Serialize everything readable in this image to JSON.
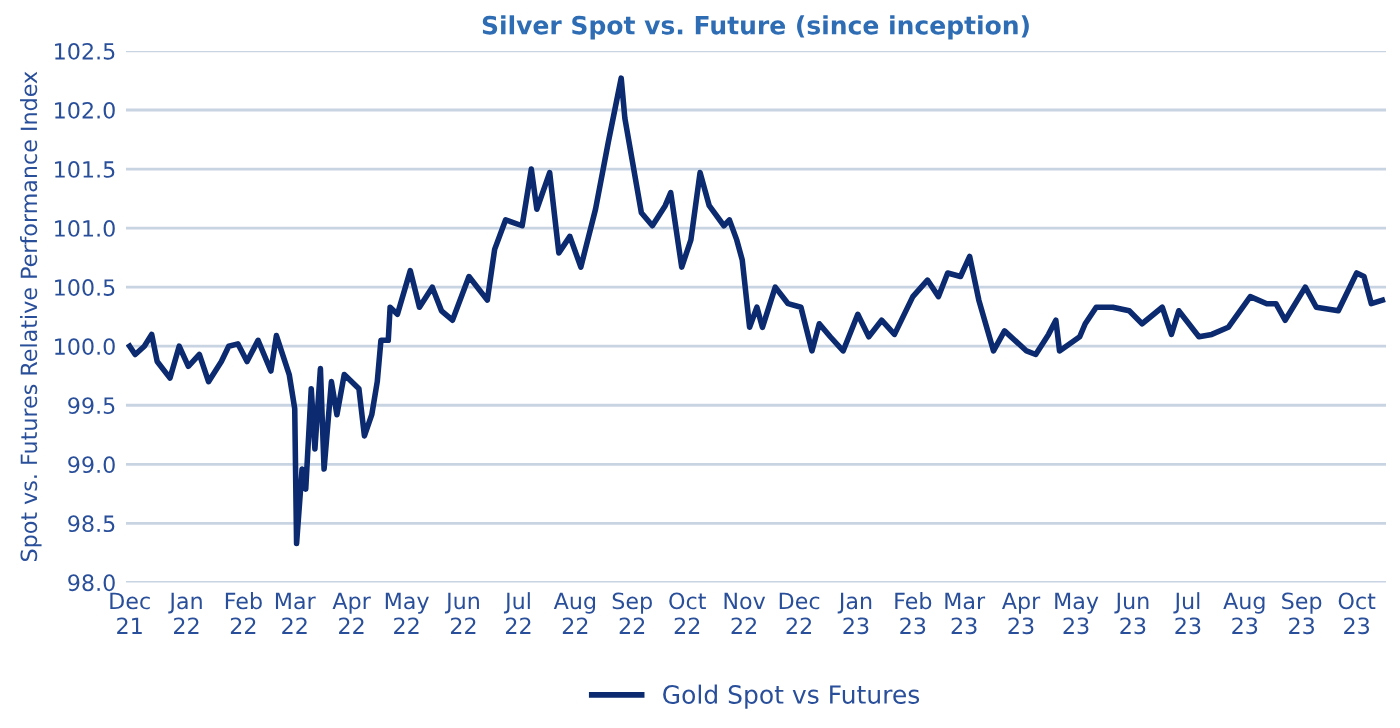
{
  "chart_data": {
    "type": "line",
    "title": "Silver Spot vs. Future (since inception)",
    "ylabel": "Spot vs. Futures Relative Performance Index",
    "x": [
      "2021-12-01",
      "2021-12-04",
      "2021-12-09",
      "2021-12-13",
      "2021-12-16",
      "2021-12-23",
      "2021-12-28",
      "2022-01-02",
      "2022-01-08",
      "2022-01-13",
      "2022-01-20",
      "2022-01-24",
      "2022-01-29",
      "2022-02-03",
      "2022-02-09",
      "2022-02-16",
      "2022-02-19",
      "2022-02-26",
      "2022-03-01",
      "2022-03-02",
      "2022-03-05",
      "2022-03-07",
      "2022-03-10",
      "2022-03-12",
      "2022-03-15",
      "2022-03-17",
      "2022-03-21",
      "2022-03-24",
      "2022-03-28",
      "2022-04-05",
      "2022-04-08",
      "2022-04-12",
      "2022-04-15",
      "2022-04-17",
      "2022-04-21",
      "2022-04-22",
      "2022-04-26",
      "2022-05-03",
      "2022-05-08",
      "2022-05-15",
      "2022-05-20",
      "2022-05-26",
      "2022-06-04",
      "2022-06-14",
      "2022-06-18",
      "2022-06-24",
      "2022-07-03",
      "2022-07-08",
      "2022-07-11",
      "2022-07-18",
      "2022-07-23",
      "2022-07-29",
      "2022-08-04",
      "2022-08-12",
      "2022-08-19",
      "2022-08-26",
      "2022-08-28",
      "2022-09-06",
      "2022-09-12",
      "2022-09-19",
      "2022-09-22",
      "2022-09-28",
      "2022-10-03",
      "2022-10-08",
      "2022-10-13",
      "2022-10-21",
      "2022-10-24",
      "2022-10-28",
      "2022-10-31",
      "2022-11-04",
      "2022-11-08",
      "2022-11-11",
      "2022-11-18",
      "2022-11-25",
      "2022-12-02",
      "2022-12-08",
      "2022-12-12",
      "2022-12-18",
      "2022-12-25",
      "2023-01-02",
      "2023-01-08",
      "2023-01-15",
      "2023-01-22",
      "2023-02-01",
      "2023-02-09",
      "2023-02-15",
      "2023-02-20",
      "2023-02-27",
      "2023-03-04",
      "2023-03-09",
      "2023-03-17",
      "2023-03-23",
      "2023-04-04",
      "2023-04-09",
      "2023-04-16",
      "2023-04-20",
      "2023-04-22",
      "2023-05-03",
      "2023-05-06",
      "2023-05-12",
      "2023-05-21",
      "2023-05-30",
      "2023-06-06",
      "2023-06-17",
      "2023-06-22",
      "2023-06-26",
      "2023-07-07",
      "2023-07-14",
      "2023-07-23",
      "2023-08-04",
      "2023-08-13",
      "2023-08-18",
      "2023-08-23",
      "2023-09-03",
      "2023-09-09",
      "2023-09-21",
      "2023-10-01",
      "2023-10-05",
      "2023-10-09",
      "2023-10-15"
    ],
    "series": [
      {
        "name": "Gold Spot vs Futures",
        "color": "#0b2a6f",
        "values": [
          100.0,
          99.93,
          100.0,
          100.1,
          99.87,
          99.73,
          100.0,
          99.83,
          99.93,
          99.7,
          99.87,
          100.0,
          100.02,
          99.87,
          100.05,
          99.79,
          100.09,
          99.76,
          99.47,
          98.33,
          98.96,
          98.79,
          99.64,
          99.13,
          99.81,
          98.96,
          99.7,
          99.42,
          99.76,
          99.64,
          99.24,
          99.42,
          99.7,
          100.05,
          100.05,
          100.33,
          100.27,
          100.64,
          100.33,
          100.5,
          100.3,
          100.22,
          100.59,
          100.39,
          100.82,
          101.07,
          101.02,
          101.5,
          101.16,
          101.47,
          100.79,
          100.93,
          100.67,
          101.16,
          101.73,
          102.27,
          101.93,
          101.13,
          101.02,
          101.19,
          101.3,
          100.67,
          100.9,
          101.47,
          101.19,
          101.02,
          101.07,
          100.9,
          100.73,
          100.16,
          100.33,
          100.16,
          100.5,
          100.36,
          100.33,
          99.96,
          100.19,
          100.08,
          99.96,
          100.27,
          100.08,
          100.22,
          100.1,
          100.42,
          100.56,
          100.42,
          100.62,
          100.59,
          100.76,
          100.39,
          99.96,
          100.13,
          99.96,
          99.93,
          100.1,
          100.22,
          99.96,
          100.08,
          100.19,
          100.33,
          100.33,
          100.3,
          100.19,
          100.33,
          100.1,
          100.3,
          100.08,
          100.1,
          100.16,
          100.42,
          100.36,
          100.36,
          100.22,
          100.5,
          100.33,
          100.3,
          100.62,
          100.59,
          100.36,
          100.39
        ]
      }
    ],
    "xlim": [
      "2021-11-29",
      "2023-10-17"
    ],
    "xticks": [
      {
        "value": "2021-12-01",
        "label": "Dec\n21"
      },
      {
        "value": "2022-01-01",
        "label": "Jan\n22"
      },
      {
        "value": "2022-02-01",
        "label": "Feb\n22"
      },
      {
        "value": "2022-03-01",
        "label": "Mar\n22"
      },
      {
        "value": "2022-04-01",
        "label": "Apr\n22"
      },
      {
        "value": "2022-05-01",
        "label": "May\n22"
      },
      {
        "value": "2022-06-01",
        "label": "Jun\n22"
      },
      {
        "value": "2022-07-01",
        "label": "Jul\n22"
      },
      {
        "value": "2022-08-01",
        "label": "Aug\n22"
      },
      {
        "value": "2022-09-01",
        "label": "Sep\n22"
      },
      {
        "value": "2022-10-01",
        "label": "Oct\n22"
      },
      {
        "value": "2022-11-01",
        "label": "Nov\n22"
      },
      {
        "value": "2022-12-01",
        "label": "Dec\n22"
      },
      {
        "value": "2023-01-01",
        "label": "Jan\n23"
      },
      {
        "value": "2023-02-01",
        "label": "Feb\n23"
      },
      {
        "value": "2023-03-01",
        "label": "Mar\n23"
      },
      {
        "value": "2023-04-01",
        "label": "Apr\n23"
      },
      {
        "value": "2023-05-01",
        "label": "May\n23"
      },
      {
        "value": "2023-06-01",
        "label": "Jun\n23"
      },
      {
        "value": "2023-07-01",
        "label": "Jul\n23"
      },
      {
        "value": "2023-08-01",
        "label": "Aug\n23"
      },
      {
        "value": "2023-09-01",
        "label": "Sep\n23"
      },
      {
        "value": "2023-10-01",
        "label": "Oct\n23"
      }
    ],
    "ylim": [
      98.0,
      102.5
    ],
    "yticks": [
      {
        "value": 98.0,
        "label": "98.0"
      },
      {
        "value": 98.5,
        "label": "98.5"
      },
      {
        "value": 99.0,
        "label": "99.0"
      },
      {
        "value": 99.5,
        "label": "99.5"
      },
      {
        "value": 100.0,
        "label": "100.0"
      },
      {
        "value": 100.5,
        "label": "100.5"
      },
      {
        "value": 101.0,
        "label": "101.0"
      },
      {
        "value": 101.5,
        "label": "101.5"
      },
      {
        "value": 102.0,
        "label": "102.0"
      },
      {
        "value": 102.5,
        "label": "102.5"
      }
    ],
    "grid": "y",
    "legend": "bottom",
    "line_style": "solid",
    "marker": "none"
  }
}
